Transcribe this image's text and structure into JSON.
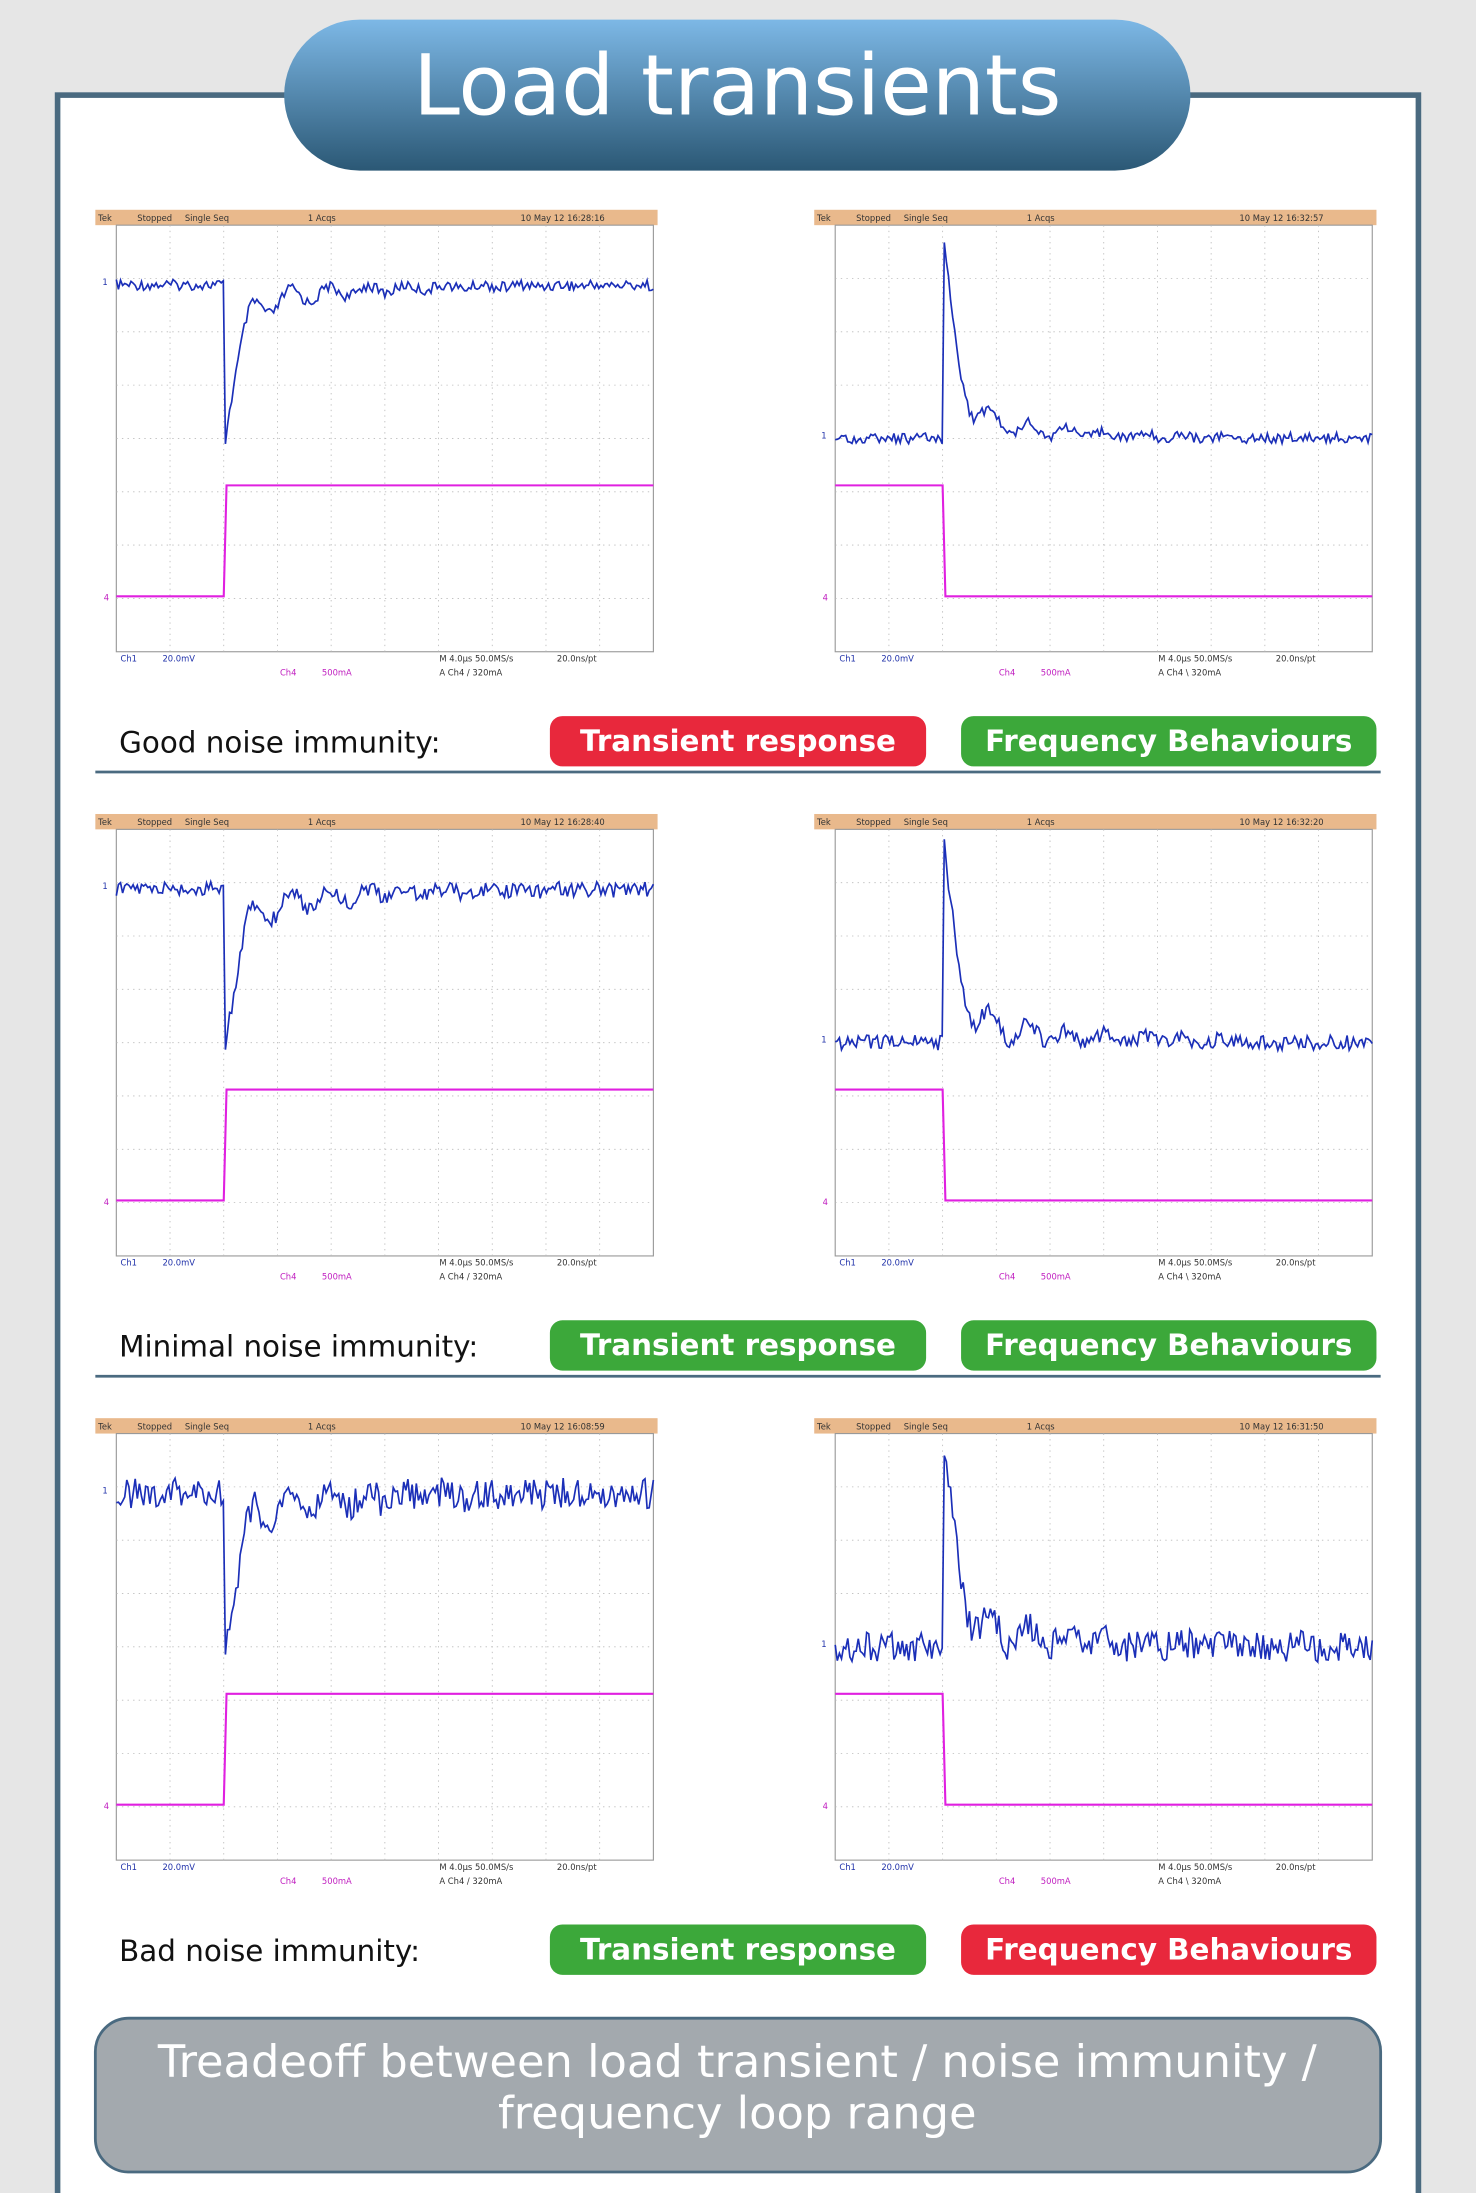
{
  "title": "Load transients",
  "rows": [
    {
      "label": "Good noise immunity:",
      "badges": [
        {
          "text": "Transient response",
          "color": "#e8283c"
        },
        {
          "text": "Frequency Behaviours",
          "color": "#3ca83a"
        }
      ],
      "scopes": [
        {
          "header": [
            "Tek",
            "Stopped",
            "Single Seq",
            "1 Acqs",
            "10 May 12 16:28:16"
          ],
          "footer": [
            "Ch1",
            "20.0mV",
            "Ch4",
            "500mA",
            "M 4.0µs 50.0MS/s",
            "A Ch4 / 320mA",
            "20.0ns/pt"
          ],
          "markers": [
            "1",
            "4"
          ]
        },
        {
          "header": [
            "Tek",
            "Stopped",
            "Single Seq",
            "1 Acqs",
            "10 May 12 16:32:57"
          ],
          "footer": [
            "Ch1",
            "20.0mV",
            "Ch4",
            "500mA",
            "M 4.0µs 50.0MS/s",
            "A Ch4 \\ 320mA",
            "20.0ns/pt"
          ],
          "markers": [
            "1",
            "4"
          ]
        }
      ]
    },
    {
      "label": "Minimal noise immunity:",
      "badges": [
        {
          "text": "Transient response",
          "color": "#3ca83a"
        },
        {
          "text": "Frequency Behaviours",
          "color": "#3ca83a"
        }
      ],
      "scopes": [
        {
          "header": [
            "Tek",
            "Stopped",
            "Single Seq",
            "1 Acqs",
            "10 May 12 16:28:40"
          ],
          "footer": [
            "Ch1",
            "20.0mV",
            "Ch4",
            "500mA",
            "M 4.0µs 50.0MS/s",
            "A Ch4 / 320mA",
            "20.0ns/pt"
          ],
          "markers": [
            "1",
            "4"
          ]
        },
        {
          "header": [
            "Tek",
            "Stopped",
            "Single Seq",
            "1 Acqs",
            "10 May 12 16:32:20"
          ],
          "footer": [
            "Ch1",
            "20.0mV",
            "Ch4",
            "500mA",
            "M 4.0µs 50.0MS/s",
            "A Ch4 \\ 320mA",
            "20.0ns/pt"
          ],
          "markers": [
            "1",
            "4"
          ]
        }
      ]
    },
    {
      "label": "Bad noise immunity:",
      "badges": [
        {
          "text": "Transient response",
          "color": "#3ca83a"
        },
        {
          "text": "Frequency Behaviours",
          "color": "#e8283c"
        }
      ],
      "scopes": [
        {
          "header": [
            "Tek",
            "Stopped",
            "Single Seq",
            "1 Acqs",
            "10 May 12 16:08:59"
          ],
          "footer": [
            "Ch1",
            "20.0mV",
            "Ch4",
            "500mA",
            "M 4.0µs 50.0MS/s",
            "A Ch4 / 320mA",
            "20.0ns/pt"
          ],
          "markers": [
            "1",
            "4"
          ]
        },
        {
          "header": [
            "Tek",
            "Stopped",
            "Single Seq",
            "1 Acqs",
            "10 May 12 16:31:50"
          ],
          "footer": [
            "Ch1",
            "20.0mV",
            "Ch4",
            "500mA",
            "M 4.0µs 50.0MS/s",
            "A Ch4 \\ 320mA",
            "20.0ns/pt"
          ],
          "markers": [
            "1",
            "4"
          ]
        }
      ]
    }
  ],
  "footer": [
    "Treadeoff between load transient / noise immunity /",
    "frequency loop range"
  ]
}
